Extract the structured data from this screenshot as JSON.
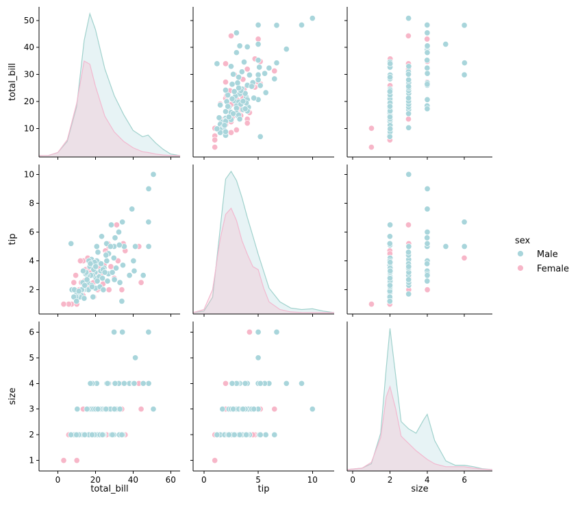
{
  "chart_data": {
    "type": "pairplot",
    "variables": [
      "total_bill",
      "tip",
      "size"
    ],
    "hue": "sex",
    "legend": {
      "title": "sex",
      "placement": "center-right",
      "entries": [
        {
          "name": "Male",
          "color": "#a8d5db"
        },
        {
          "name": "Female",
          "color": "#f7b6c8"
        }
      ]
    },
    "colors": {
      "Male": "#a8d5db",
      "Female": "#f7b6c8",
      "male_line": "#9fd1cc",
      "female_line": "#f2b8cf"
    },
    "axes": {
      "total_bill": {
        "label": "total_bill",
        "diag_range": [
          -10,
          65
        ],
        "scatter_range": [
          1,
          53.5
        ],
        "ticks": [
          0,
          20,
          40,
          60
        ],
        "y_ticks": [
          10,
          20,
          30,
          40,
          50
        ]
      },
      "tip": {
        "label": "tip",
        "diag_range": [
          -1,
          12
        ],
        "scatter_range": [
          0.6,
          10.4
        ],
        "ticks": [
          0,
          5,
          10
        ],
        "y_ticks": [
          2,
          4,
          6,
          8,
          10
        ]
      },
      "size": {
        "label": "size",
        "diag_range": [
          -0.3,
          7.5
        ],
        "scatter_range": [
          0.75,
          6.25
        ],
        "ticks": [
          0,
          2,
          4,
          6
        ],
        "y_ticks": [
          1,
          2,
          3,
          4,
          5,
          6
        ]
      }
    },
    "points": {
      "Male": [
        [
          50.8,
          10,
          3
        ],
        [
          48.3,
          9,
          4
        ],
        [
          48.2,
          6.7,
          6
        ],
        [
          39.4,
          7.6,
          4
        ],
        [
          34.3,
          6.7,
          6
        ],
        [
          32.4,
          6,
          4
        ],
        [
          29.9,
          5,
          6
        ],
        [
          28.4,
          6.5,
          2
        ],
        [
          48.3,
          5,
          4
        ],
        [
          41.2,
          5,
          5
        ],
        [
          20.7,
          5,
          4
        ],
        [
          30.4,
          5.6,
          4
        ],
        [
          45.4,
          3,
          4
        ],
        [
          38.1,
          3,
          4
        ],
        [
          40.2,
          4,
          4
        ],
        [
          40.6,
          3.3,
          4
        ],
        [
          35.3,
          5,
          4
        ],
        [
          34.6,
          3.7,
          2
        ],
        [
          32.7,
          5.1,
          2
        ],
        [
          29.8,
          4.2,
          2
        ],
        [
          26.9,
          3.1,
          4
        ],
        [
          25.9,
          5.2,
          4
        ],
        [
          24.6,
          3.5,
          2
        ],
        [
          23.3,
          5.7,
          2
        ],
        [
          22.8,
          3.3,
          2
        ],
        [
          21.6,
          3.9,
          2
        ],
        [
          20.7,
          4,
          3
        ],
        [
          20.3,
          2.8,
          2
        ],
        [
          19.8,
          3.2,
          2
        ],
        [
          18.4,
          3,
          4
        ],
        [
          17.9,
          4.1,
          3
        ],
        [
          17.5,
          3,
          2
        ],
        [
          16.3,
          2,
          2
        ],
        [
          15.7,
          3,
          3
        ],
        [
          14.8,
          3.1,
          2
        ],
        [
          13.8,
          2,
          2
        ],
        [
          13.3,
          2.5,
          2
        ],
        [
          12.5,
          1.6,
          2
        ],
        [
          11.6,
          1.5,
          2
        ],
        [
          10.3,
          1.7,
          3
        ],
        [
          10.1,
          1.8,
          2
        ],
        [
          9.6,
          1.5,
          2
        ],
        [
          8.5,
          1.5,
          2
        ],
        [
          7.5,
          2,
          2
        ],
        [
          8.8,
          2,
          2
        ],
        [
          13,
          2,
          2
        ],
        [
          15,
          3.2,
          2
        ],
        [
          16,
          2.5,
          2
        ],
        [
          17,
          3.6,
          3
        ],
        [
          18,
          2.3,
          3
        ],
        [
          19,
          3.4,
          3
        ],
        [
          20,
          2.1,
          2
        ],
        [
          22,
          2.9,
          2
        ],
        [
          23,
          3.8,
          3
        ],
        [
          24,
          3.4,
          3
        ],
        [
          25,
          3.2,
          3
        ],
        [
          26,
          4,
          4
        ],
        [
          27,
          4.5,
          3
        ],
        [
          31,
          3.5,
          3
        ],
        [
          33,
          2.5,
          3
        ],
        [
          28,
          5,
          3
        ],
        [
          21,
          2.6,
          2
        ],
        [
          7,
          5.2,
          2
        ],
        [
          12.7,
          2,
          2
        ],
        [
          14,
          1.4,
          2
        ],
        [
          16.5,
          4,
          2
        ],
        [
          18.7,
          1.5,
          2
        ],
        [
          19.5,
          3.9,
          2
        ],
        [
          22.4,
          2.2,
          2
        ],
        [
          24.2,
          2,
          2
        ],
        [
          25.6,
          4.4,
          3
        ],
        [
          29,
          3.2,
          2
        ],
        [
          34,
          1.2,
          2
        ],
        [
          17.3,
          3.8,
          4
        ],
        [
          15.5,
          2.7,
          3
        ],
        [
          13.5,
          3.3,
          2
        ],
        [
          11.2,
          1.9,
          2
        ],
        [
          9.9,
          1.2,
          2
        ],
        [
          23.7,
          2.8,
          2
        ],
        [
          20.1,
          3.6,
          3
        ],
        [
          18.2,
          2.2,
          2
        ],
        [
          26.4,
          2.6,
          4
        ],
        [
          30.1,
          2.7,
          3
        ],
        [
          21.3,
          4.6,
          3
        ],
        [
          14.3,
          2.3,
          2
        ]
      ],
      "Female": [
        [
          44.3,
          2.5,
          3
        ],
        [
          43.1,
          5,
          4
        ],
        [
          35.8,
          4.7,
          2
        ],
        [
          34.8,
          5.2,
          4
        ],
        [
          31.3,
          6.5,
          3
        ],
        [
          29.8,
          4.2,
          6
        ],
        [
          27.2,
          2,
          4
        ],
        [
          26.6,
          5.2,
          3
        ],
        [
          25.3,
          4.7,
          2
        ],
        [
          24.6,
          3.7,
          2
        ],
        [
          22.8,
          3.1,
          2
        ],
        [
          21.2,
          2,
          2
        ],
        [
          20.3,
          3.2,
          2
        ],
        [
          19.7,
          3,
          3
        ],
        [
          18.4,
          4,
          2
        ],
        [
          17.3,
          3.3,
          2
        ],
        [
          16.4,
          2.1,
          2
        ],
        [
          15.4,
          3.3,
          3
        ],
        [
          14.8,
          3.4,
          2
        ],
        [
          13.4,
          1.6,
          2
        ],
        [
          12.5,
          2.5,
          2
        ],
        [
          11.4,
          2,
          2
        ],
        [
          10.3,
          1.7,
          2
        ],
        [
          8.5,
          2.5,
          2
        ],
        [
          7.3,
          1,
          2
        ],
        [
          5.8,
          1,
          2
        ],
        [
          3.1,
          1,
          1
        ],
        [
          10.1,
          1,
          1
        ],
        [
          13.5,
          4,
          3
        ],
        [
          16.9,
          3.5,
          2
        ],
        [
          18.9,
          2.5,
          2
        ],
        [
          20.9,
          3,
          2
        ],
        [
          22.2,
          2.1,
          2
        ],
        [
          23.7,
          3.5,
          3
        ],
        [
          25.9,
          4.5,
          2
        ],
        [
          27.2,
          5,
          3
        ],
        [
          30,
          2.8,
          3
        ],
        [
          32,
          4,
          3
        ],
        [
          34,
          2,
          3
        ],
        [
          12,
          4,
          2
        ],
        [
          9.5,
          3,
          2
        ],
        [
          14.1,
          2.6,
          2
        ],
        [
          15.9,
          4.2,
          2
        ],
        [
          19.1,
          1.5,
          2
        ],
        [
          21.5,
          3.6,
          2
        ],
        [
          24,
          2.4,
          2
        ],
        [
          28.2,
          3.6,
          3
        ],
        [
          17.9,
          3.2,
          2
        ],
        [
          13.9,
          2.3,
          2
        ],
        [
          11.6,
          1.8,
          2
        ]
      ]
    },
    "kde_diag": {
      "total_bill": {
        "x": [
          -10,
          -5,
          0,
          5,
          10,
          14,
          17,
          20,
          25,
          30,
          35,
          40,
          45,
          48,
          52,
          56,
          60,
          65
        ],
        "Male": [
          0,
          0.001,
          0.02,
          0.09,
          0.31,
          0.73,
          0.9,
          0.8,
          0.55,
          0.38,
          0.26,
          0.16,
          0.12,
          0.13,
          0.08,
          0.04,
          0.01,
          0
        ],
        "Female": [
          0,
          0.001,
          0.02,
          0.1,
          0.33,
          0.6,
          0.58,
          0.44,
          0.25,
          0.15,
          0.09,
          0.05,
          0.025,
          0.02,
          0.01,
          0.004,
          0.001,
          0
        ]
      },
      "tip": {
        "x": [
          -1,
          0,
          0.8,
          1.5,
          2,
          2.5,
          3,
          3.5,
          4,
          4.5,
          5,
          5.5,
          6,
          7,
          8,
          9,
          10,
          11,
          12
        ],
        "Male": [
          0,
          0.01,
          0.1,
          0.55,
          0.87,
          0.92,
          0.86,
          0.75,
          0.62,
          0.5,
          0.38,
          0.27,
          0.16,
          0.07,
          0.03,
          0.02,
          0.025,
          0.01,
          0
        ],
        "Female": [
          0,
          0.02,
          0.15,
          0.48,
          0.64,
          0.68,
          0.6,
          0.47,
          0.38,
          0.3,
          0.28,
          0.16,
          0.07,
          0.02,
          0.005,
          0.001,
          0,
          0,
          0
        ]
      },
      "size": {
        "x": [
          -0.3,
          0.5,
          1,
          1.5,
          1.8,
          2,
          2.3,
          2.6,
          3,
          3.4,
          3.8,
          4,
          4.4,
          5,
          5.5,
          6,
          6.5,
          7,
          7.5
        ],
        "Male": [
          0,
          0.01,
          0.04,
          0.25,
          0.7,
          0.97,
          0.65,
          0.33,
          0.28,
          0.25,
          0.34,
          0.38,
          0.2,
          0.06,
          0.03,
          0.03,
          0.02,
          0.005,
          0
        ],
        "Female": [
          0,
          0.01,
          0.05,
          0.22,
          0.5,
          0.57,
          0.42,
          0.23,
          0.18,
          0.13,
          0.09,
          0.07,
          0.04,
          0.02,
          0.02,
          0.02,
          0.01,
          0.003,
          0
        ]
      }
    }
  }
}
